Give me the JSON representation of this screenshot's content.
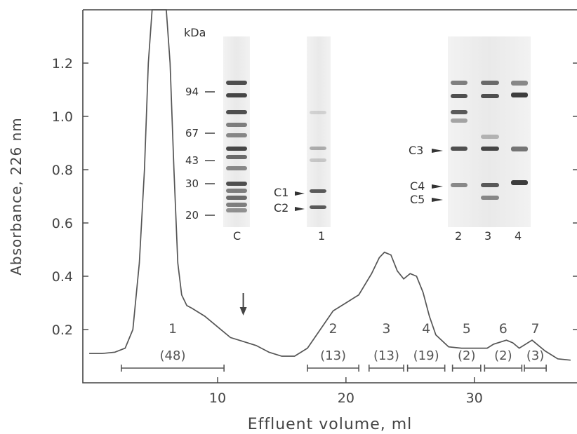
{
  "chart_data": {
    "type": "line",
    "xlabel": "Effluent volume, ml",
    "ylabel": "Absorbance, 226 nm",
    "xlim": [
      -0.5,
      38
    ],
    "ylim": [
      0,
      1.4
    ],
    "x_ticks": [
      10,
      20,
      30
    ],
    "x_tick_labels": [
      "10",
      "20",
      "30"
    ],
    "y_ticks": [
      0.2,
      0.4,
      0.6,
      0.8,
      1.0,
      1.2
    ],
    "y_tick_labels": [
      "0.2",
      "0.4",
      "0.6",
      "0.8",
      "1.0",
      "1.2"
    ],
    "series": [
      {
        "x": [
          0,
          1,
          2,
          2.8,
          3.4,
          3.9,
          4.3,
          4.6,
          4.9,
          5.5,
          6.0,
          6.3,
          6.6,
          6.9,
          7.2,
          7.6,
          8.0,
          9.0,
          10.0,
          11.0,
          12.0,
          13.0,
          14.0,
          15.0,
          16.0,
          17.0,
          18.0,
          19.0,
          20.0,
          21.0,
          22.0,
          22.6,
          23.0,
          23.5,
          24.0,
          24.5,
          25.0,
          25.5,
          26.0,
          26.5,
          27.0,
          28.0,
          29.0,
          30.0,
          31.0,
          31.5,
          32.5,
          33.0,
          33.5,
          34.5,
          35.5,
          36.5,
          37.5
        ],
        "y": [
          0.11,
          0.11,
          0.115,
          0.13,
          0.2,
          0.45,
          0.8,
          1.2,
          1.4,
          1.4,
          1.4,
          1.2,
          0.8,
          0.45,
          0.33,
          0.29,
          0.28,
          0.25,
          0.21,
          0.17,
          0.155,
          0.14,
          0.115,
          0.1,
          0.1,
          0.13,
          0.2,
          0.27,
          0.3,
          0.33,
          0.41,
          0.47,
          0.49,
          0.48,
          0.42,
          0.39,
          0.41,
          0.4,
          0.34,
          0.25,
          0.18,
          0.135,
          0.13,
          0.13,
          0.13,
          0.145,
          0.16,
          0.15,
          0.13,
          0.16,
          0.12,
          0.09,
          0.085
        ]
      }
    ],
    "fractions": [
      {
        "label": "1",
        "percent": "(48)",
        "start": 2.5,
        "end": 10.5
      },
      {
        "label": "2",
        "percent": "(13)",
        "start": 17.0,
        "end": 21.0
      },
      {
        "label": "3",
        "percent": "(13)",
        "start": 21.8,
        "end": 24.5
      },
      {
        "label": "4",
        "percent": "(19)",
        "start": 24.8,
        "end": 27.7
      },
      {
        "label": "5",
        "percent": "(2)",
        "start": 28.3,
        "end": 30.5
      },
      {
        "label": "6",
        "percent": "(2)",
        "start": 30.8,
        "end": 33.7
      },
      {
        "label": "7",
        "percent": "(3)",
        "start": 33.9,
        "end": 35.6
      }
    ],
    "arrow_x": 12,
    "annotations": {
      "kda_label": "kDa",
      "markers": [
        "94",
        "67",
        "43",
        "30",
        "20"
      ],
      "lane_labels": [
        "C",
        "1",
        "2",
        "3",
        "4"
      ],
      "band_labels": [
        "C1",
        "C2",
        "C3",
        "C4",
        "C5"
      ]
    }
  }
}
